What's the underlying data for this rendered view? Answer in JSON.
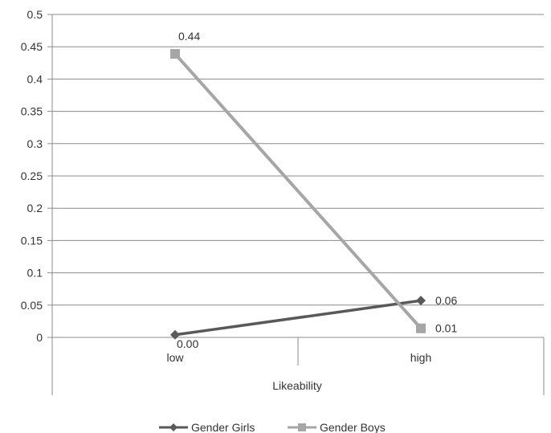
{
  "chart_data": {
    "type": "line",
    "title": "",
    "xlabel": "Likeability",
    "ylabel": "",
    "categories": [
      "low",
      "high"
    ],
    "ylim": [
      0,
      0.5
    ],
    "yticks": [
      "0",
      "0.05",
      "0.1",
      "0.15",
      "0.2",
      "0.25",
      "0.3",
      "0.35",
      "0.4",
      "0.45",
      "0.5"
    ],
    "grid": true,
    "legend_position": "bottom",
    "series": [
      {
        "name": "Gender Girls",
        "values": [
          0.004,
          0.057
        ],
        "labels": [
          "0.00",
          "0.06"
        ],
        "color": "#595959",
        "marker": "diamond"
      },
      {
        "name": "Gender Boys",
        "values": [
          0.439,
          0.014
        ],
        "labels": [
          "0.44",
          "0.01"
        ],
        "color": "#a6a6a6",
        "marker": "square"
      }
    ]
  }
}
